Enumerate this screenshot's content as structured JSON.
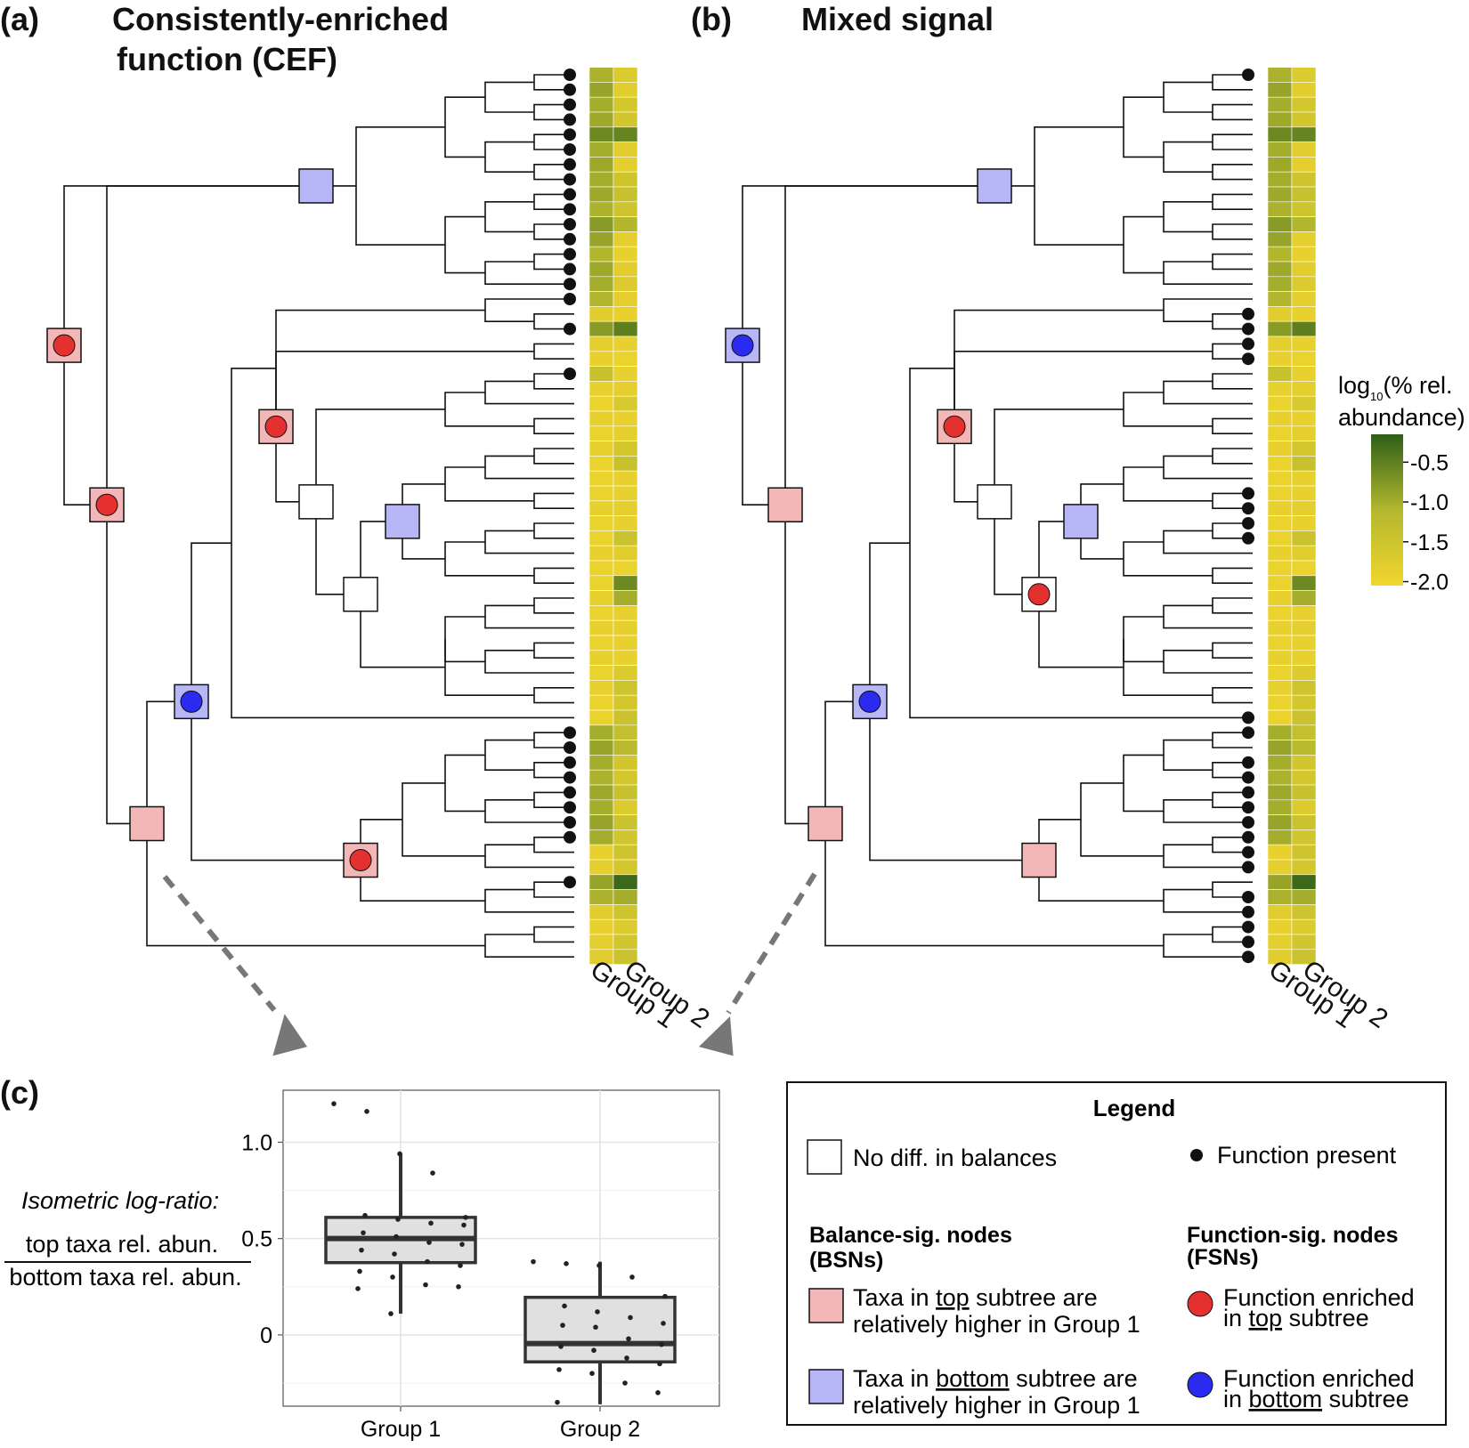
{
  "panels": {
    "a": {
      "letter": "(a)",
      "title_line1": "Consistently-enriched",
      "title_line2": "function (CEF)",
      "heatmap_labels": [
        "Group 1",
        "Group 2"
      ],
      "node_types": [
        "blue",
        "red-circle",
        "red-circle",
        "red-circle",
        "white",
        "white",
        "blue",
        "blue-circle",
        "red-circle",
        "pink"
      ],
      "function_present_rows": [
        0,
        1,
        2,
        3,
        4,
        5,
        6,
        7,
        8,
        9,
        10,
        11,
        12,
        13,
        14,
        15,
        17,
        20,
        44,
        45,
        46,
        47,
        48,
        49,
        50,
        51,
        54
      ]
    },
    "b": {
      "letter": "(b)",
      "title": "Mixed signal",
      "heatmap_labels": [
        "Group 1",
        "Group 2"
      ],
      "node_types": [
        "blue",
        "blue-circle",
        "pink",
        "red-circle",
        "white",
        "red-circle-white",
        "blue",
        "blue-circle",
        "pink",
        "pink"
      ],
      "function_present_rows": [
        0,
        16,
        17,
        18,
        19,
        28,
        29,
        30,
        31,
        43,
        44,
        46,
        47,
        48,
        49,
        50,
        51,
        52,
        53,
        55,
        56,
        57,
        58,
        59
      ]
    },
    "heatmap_values": {
      "group1": [
        -1.05,
        -0.9,
        -1.0,
        -0.95,
        -0.6,
        -1.0,
        -0.95,
        -1.0,
        -0.95,
        -1.05,
        -0.8,
        -0.9,
        -1.1,
        -0.95,
        -1.0,
        -1.1,
        -1.8,
        -0.8,
        -1.85,
        -1.9,
        -1.4,
        -1.9,
        -1.95,
        -1.9,
        -1.95,
        -1.9,
        -1.95,
        -1.95,
        -1.95,
        -1.9,
        -1.95,
        -1.95,
        -1.9,
        -1.95,
        -1.95,
        -1.9,
        -1.95,
        -1.9,
        -1.95,
        -1.9,
        -1.95,
        -1.9,
        -1.95,
        -1.95,
        -1.0,
        -0.9,
        -1.0,
        -1.05,
        -0.95,
        -1.0,
        -0.9,
        -1.0,
        -1.9,
        -1.85,
        -0.9,
        -1.05,
        -1.8,
        -1.9,
        -1.85,
        -1.8
      ],
      "group2": [
        -1.7,
        -1.8,
        -1.6,
        -1.55,
        -0.55,
        -1.8,
        -1.85,
        -1.5,
        -1.4,
        -1.5,
        -1.1,
        -1.85,
        -1.9,
        -1.8,
        -1.7,
        -1.85,
        -1.9,
        -0.5,
        -1.9,
        -1.95,
        -1.9,
        -1.85,
        -1.65,
        -1.9,
        -1.85,
        -1.6,
        -1.4,
        -1.9,
        -1.9,
        -1.85,
        -1.9,
        -1.45,
        -1.8,
        -1.95,
        -0.6,
        -1.0,
        -1.9,
        -1.85,
        -1.9,
        -1.9,
        -1.7,
        -1.5,
        -1.6,
        -1.45,
        -1.35,
        -1.2,
        -1.55,
        -1.6,
        -1.4,
        -1.7,
        -1.45,
        -1.55,
        -1.5,
        -1.6,
        -0.25,
        -1.0,
        -1.5,
        -1.7,
        -1.55,
        -1.45
      ]
    },
    "colorbar": {
      "title_prefix": "log",
      "title_sub": "10",
      "title_rest": "(% rel.",
      "title_line2": "abundance)",
      "ticks": [
        "-0.5",
        "-1.0",
        "-1.5",
        "-2.0"
      ],
      "tick_values": [
        -0.5,
        -1.0,
        -1.5,
        -2.0
      ],
      "range": [
        -2.05,
        -0.15
      ],
      "colors": [
        "#2e5f17",
        "#b3b72e",
        "#f2d62e"
      ]
    }
  },
  "panel_c": {
    "letter": "(c)",
    "ylabel_line1": "Isometric log-ratio:",
    "ylabel_numerator": "top taxa rel. abun.",
    "ylabel_denominator": "bottom taxa rel. abun.",
    "chart_data": {
      "type": "box",
      "categories": [
        "Group 1",
        "Group 2"
      ],
      "yticks": [
        "0",
        "0.5",
        "1.0"
      ],
      "ytick_values": [
        0,
        0.5,
        1.0
      ],
      "ylim": [
        -0.37,
        1.27
      ],
      "boxes": [
        {
          "name": "Group 1",
          "q1": 0.375,
          "median": 0.5,
          "q3": 0.61,
          "whisker_low": 0.11,
          "whisker_high": 0.94
        },
        {
          "name": "Group 2",
          "q1": -0.14,
          "median": -0.045,
          "q3": 0.195,
          "whisker_low": -0.36,
          "whisker_high": 0.38
        }
      ],
      "points": [
        {
          "group": 0,
          "y": [
            1.2,
            1.16,
            0.94,
            0.84,
            0.61,
            0.62,
            0.6,
            0.58,
            0.57,
            0.53,
            0.51,
            0.48,
            0.47,
            0.44,
            0.42,
            0.38,
            0.36,
            0.33,
            0.3,
            0.26,
            0.25,
            0.24,
            0.11
          ]
        },
        {
          "group": 1,
          "y": [
            0.38,
            0.37,
            0.36,
            0.3,
            0.2,
            0.15,
            0.12,
            0.09,
            0.06,
            0.05,
            0.04,
            -0.02,
            -0.05,
            -0.06,
            -0.08,
            -0.12,
            -0.15,
            -0.18,
            -0.2,
            -0.25,
            -0.3,
            -0.35
          ]
        }
      ]
    }
  },
  "legend": {
    "title": "Legend",
    "no_diff": "No diff. in balances",
    "function_present": "Function present",
    "bsn_line1": "Balance-sig. nodes",
    "bsn_line2": "(BSNs)",
    "fsn_line1": "Function-sig. nodes",
    "fsn_line2": "(FSNs)",
    "top_pre": "Taxa in ",
    "top_word": "top",
    "top_post": " subtree are",
    "top_line2": "relatively higher in Group 1",
    "bottom_pre": "Taxa in ",
    "bottom_word": "bottom",
    "bottom_post": " subtree are",
    "bottom_line2": "relatively higher in Group 1",
    "f_top_line1": "Function enriched",
    "f_top_pre": "in ",
    "f_top_word": "top",
    "f_top_post": " subtree",
    "f_bottom_line1": "Function enriched",
    "f_bottom_pre": "in ",
    "f_bottom_word": "bottom",
    "f_bottom_post": " subtree"
  },
  "colors": {
    "pink_node": "#f4b7b7",
    "blue_node": "#b7b7f7",
    "red_circle": "#e53030",
    "blue_circle": "#2a2af0",
    "arrow": "#777777"
  }
}
